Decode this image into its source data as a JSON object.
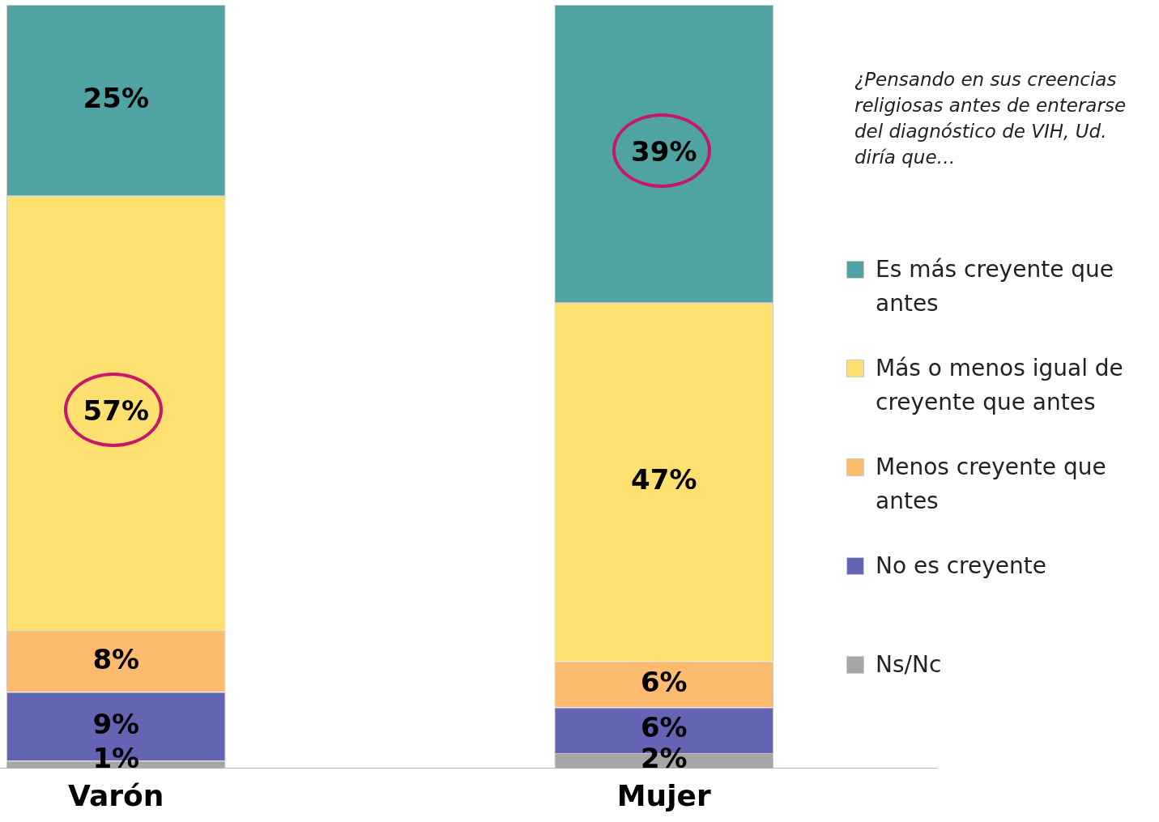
{
  "chart_data": {
    "type": "bar",
    "stacked": true,
    "categories": [
      "Varón",
      "Mujer"
    ],
    "tick_labels": "x",
    "legend": "right",
    "grid": false,
    "series": [
      {
        "name": "Ns/Nc",
        "color": "#a6a6a6",
        "values": [
          1,
          2
        ],
        "value_labels": [
          "1%",
          "2%"
        ]
      },
      {
        "name": "No es creyente",
        "color": "#6464b4",
        "values": [
          9,
          6
        ],
        "value_labels": [
          "9%",
          "6%"
        ]
      },
      {
        "name": "Menos creyente que antes",
        "color": "#fdbb70",
        "values": [
          8,
          6
        ],
        "value_labels": [
          "8%",
          "6%"
        ]
      },
      {
        "name": "Más o menos igual de creyente que antes",
        "color": "#fde070",
        "values": [
          57,
          47
        ],
        "value_labels": [
          "57%",
          "47%"
        ]
      },
      {
        "name": "Es más creyente que antes",
        "color": "#4fa3a3",
        "values": [
          25,
          39
        ],
        "value_labels": [
          "25%",
          "39%"
        ]
      }
    ],
    "annotations": [
      "¿Pensando en sus creencias religiosas antes de enterarse del diagnóstico de VIH, Ud. diría que…"
    ]
  }
}
